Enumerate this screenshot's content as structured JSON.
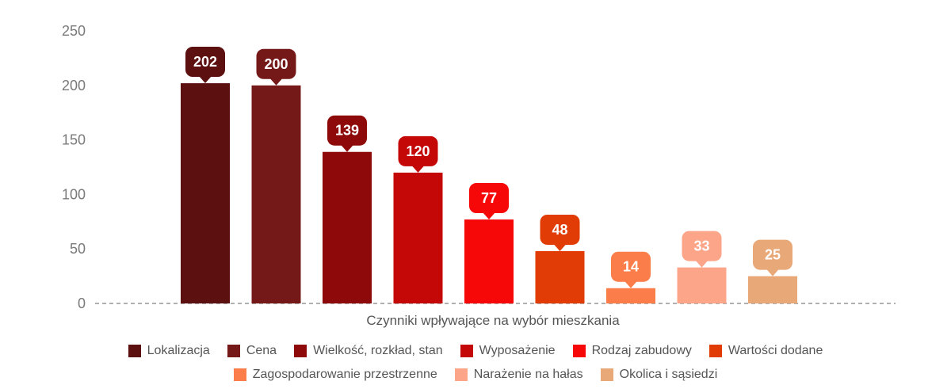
{
  "chart_data": {
    "type": "bar",
    "categories": [
      "Lokalizacja",
      "Cena",
      "Wielkość, rozkład, stan",
      "Wyposażenie",
      "Rodzaj zabudowy",
      "Wartości dodane",
      "Zagospodarowanie przestrzenne",
      "Narażenie na hałas",
      "Okolica i sąsiedzi"
    ],
    "values": [
      202,
      200,
      139,
      120,
      77,
      48,
      14,
      33,
      25
    ],
    "colors": [
      "#5c1010",
      "#741818",
      "#8e0a0a",
      "#c40808",
      "#f70808",
      "#e23c06",
      "#fb7d4a",
      "#fca589",
      "#e9a878"
    ],
    "xlabel": "Czynniki wpływające na wybór mieszkania",
    "ylabel": "",
    "ylim": [
      0,
      250
    ],
    "yticks": [
      0,
      50,
      100,
      150,
      200,
      250
    ],
    "grid": false,
    "legend_placement": "bottom",
    "data_labels": "callout-bubbles"
  }
}
